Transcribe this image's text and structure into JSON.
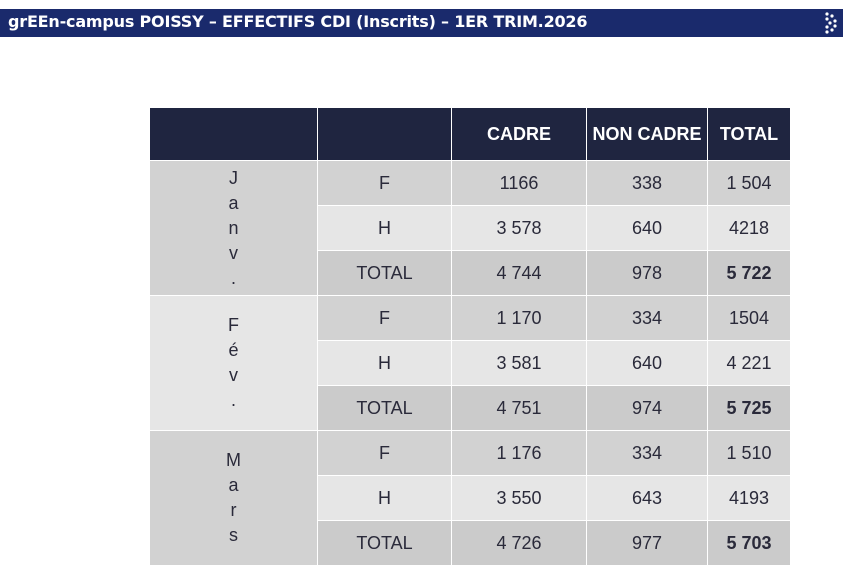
{
  "header": {
    "title": "grEEn-campus POISSY – EFFECTIFS CDI (Inscrits) – 1ER TRIM.2026"
  },
  "table": {
    "columns": [
      "",
      "",
      "CADRE",
      "NON CADRE",
      "TOTAL"
    ],
    "groups": [
      {
        "month_letters": [
          "J",
          "a",
          "n",
          "v",
          "."
        ],
        "rows": [
          {
            "label": "F",
            "cadre": "1166",
            "non_cadre": "338",
            "total": "1 504"
          },
          {
            "label": "H",
            "cadre": "3 578",
            "non_cadre": "640",
            "total": "4218"
          },
          {
            "label": "TOTAL",
            "cadre": "4 744",
            "non_cadre": "978",
            "total": "5 722"
          }
        ]
      },
      {
        "month_letters": [
          "F",
          "é",
          "v",
          "."
        ],
        "rows": [
          {
            "label": "F",
            "cadre": "1 170",
            "non_cadre": "334",
            "total": "1504"
          },
          {
            "label": "H",
            "cadre": "3 581",
            "non_cadre": "640",
            "total": "4 221"
          },
          {
            "label": "TOTAL",
            "cadre": "4 751",
            "non_cadre": "974",
            "total": "5 725"
          }
        ]
      },
      {
        "month_letters": [
          "M",
          "a",
          "r",
          "s"
        ],
        "rows": [
          {
            "label": "F",
            "cadre": "1 176",
            "non_cadre": "334",
            "total": "1 510"
          },
          {
            "label": "H",
            "cadre": "3 550",
            "non_cadre": "643",
            "total": "4193"
          },
          {
            "label": "TOTAL",
            "cadre": "4 726",
            "non_cadre": "977",
            "total": "5 703"
          }
        ]
      }
    ]
  },
  "colors": {
    "header_bar": "#1a2a6c",
    "table_header": "#1f2540"
  }
}
